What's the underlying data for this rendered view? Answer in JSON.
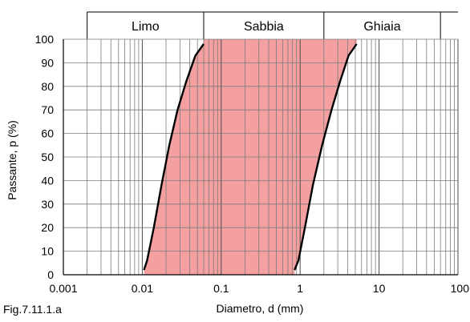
{
  "caption": "Fig.7.11.1.a",
  "chart_data": {
    "type": "area",
    "xscale": "log",
    "xlim": [
      0.001,
      100
    ],
    "ylim": [
      0,
      100
    ],
    "grid": true,
    "xlabel": "Diametro, d (mm)",
    "ylabel": "Passante, p (%)",
    "xticks": [
      0.001,
      0.01,
      0.1,
      1,
      10,
      100
    ],
    "xtick_labels": [
      "0.001",
      "0.01",
      "0.1",
      "1",
      "10",
      "100"
    ],
    "yticks": [
      0,
      10,
      20,
      30,
      40,
      50,
      60,
      70,
      80,
      90,
      100
    ],
    "yticks_labels": [
      "0",
      "10",
      "20",
      "30",
      "40",
      "50",
      "60",
      "70",
      "80",
      "90",
      "100"
    ],
    "soil_classes": [
      {
        "label": "Limo",
        "from": 0.002,
        "to": 0.06
      },
      {
        "label": "Sabbia",
        "from": 0.06,
        "to": 2
      },
      {
        "label": "Ghiaia",
        "from": 2,
        "to": 60
      }
    ],
    "band_color": "#f4a0a0",
    "line_color": "#000000",
    "series": [
      {
        "x": [
          0.0105,
          0.0115,
          0.014,
          0.0175,
          0.022,
          0.028,
          0.036,
          0.047,
          0.06
        ],
        "y": [
          2,
          6,
          20,
          38,
          55,
          70,
          82,
          93,
          98
        ]
      },
      {
        "x": [
          0.85,
          0.95,
          1.15,
          1.45,
          1.9,
          2.5,
          3.2,
          4.1,
          5.2
        ],
        "y": [
          2,
          6,
          20,
          38,
          55,
          70,
          82,
          93,
          98
        ]
      }
    ]
  }
}
